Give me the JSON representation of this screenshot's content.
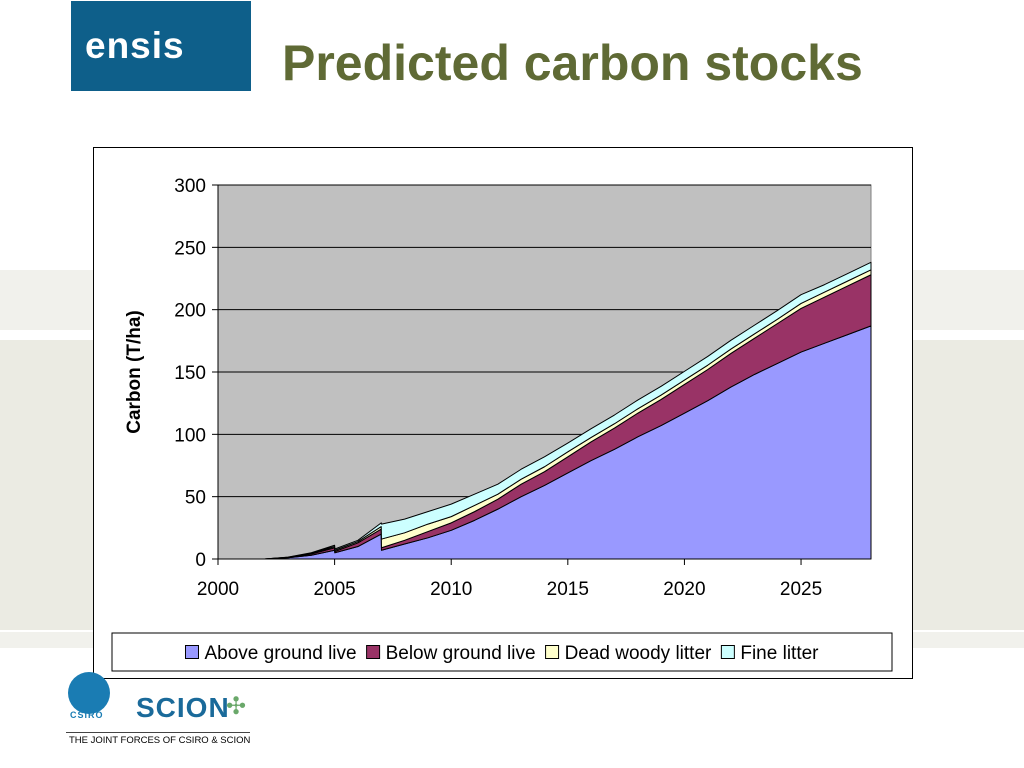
{
  "header": {
    "logo_text": "ensis",
    "title": "Predicted carbon stocks"
  },
  "footer": {
    "csiro_label": "CSIRO",
    "scion_label": "SCION",
    "tagline": "THE JOINT FORCES OF CSIRO & SCION"
  },
  "colors": {
    "title": "#5f6a35",
    "logo_bg": "#0e5f8a",
    "plot_bg": "#c0c0c0",
    "above_ground_live": "#9999ff",
    "below_ground_live": "#993366",
    "dead_woody_litter": "#ffffcc",
    "fine_litter": "#ccffff"
  },
  "chart_data": {
    "type": "area",
    "stacked": true,
    "title": "",
    "xlabel": "",
    "ylabel": "Carbon (T/ha)",
    "xlim": [
      2000,
      2028
    ],
    "ylim": [
      0,
      300
    ],
    "xticks": [
      2000,
      2005,
      2010,
      2015,
      2020,
      2025
    ],
    "yticks": [
      0,
      50,
      100,
      150,
      200,
      250,
      300
    ],
    "grid": true,
    "legend_position": "bottom",
    "x": [
      2000,
      2002,
      2003,
      2004,
      2005,
      2005.01,
      2006,
      2007,
      2007.01,
      2008,
      2009,
      2010,
      2011,
      2012,
      2013,
      2014,
      2015,
      2016,
      2017,
      2018,
      2019,
      2020,
      2021,
      2022,
      2023,
      2024,
      2025,
      2026,
      2027,
      2028
    ],
    "series": [
      {
        "name": "Above ground live",
        "color": "#9999ff",
        "values": [
          0,
          0,
          1,
          3,
          7,
          5,
          10,
          20,
          7,
          12,
          17,
          23,
          31,
          40,
          50,
          59,
          69,
          79,
          88,
          98,
          107,
          117,
          127,
          138,
          148,
          157,
          166,
          173,
          180,
          187
        ]
      },
      {
        "name": "Below ground live",
        "color": "#993366",
        "values": [
          0,
          0,
          0.3,
          1,
          2,
          1,
          3,
          4,
          2,
          3,
          5,
          6,
          7,
          8,
          10,
          11,
          13,
          15,
          17,
          19,
          21,
          23,
          25,
          27,
          29,
          32,
          35,
          37,
          39,
          41
        ]
      },
      {
        "name": "Dead woody litter",
        "color": "#ffffcc",
        "values": [
          0,
          0,
          0.1,
          0.5,
          1,
          1,
          1,
          2,
          7,
          6,
          6,
          5,
          5,
          4,
          4,
          4,
          4,
          3.5,
          3.5,
          3.5,
          3.5,
          3.5,
          3.5,
          3.5,
          3.5,
          3.5,
          4,
          4,
          4,
          4
        ]
      },
      {
        "name": "Fine litter",
        "color": "#ccffff",
        "values": [
          0,
          0,
          0.1,
          0.5,
          1,
          1,
          1,
          3,
          12,
          11,
          10,
          10,
          9,
          8,
          8,
          8,
          7,
          7,
          7,
          7,
          7,
          7,
          7,
          7,
          7,
          7,
          7,
          6,
          6,
          6
        ]
      }
    ]
  }
}
